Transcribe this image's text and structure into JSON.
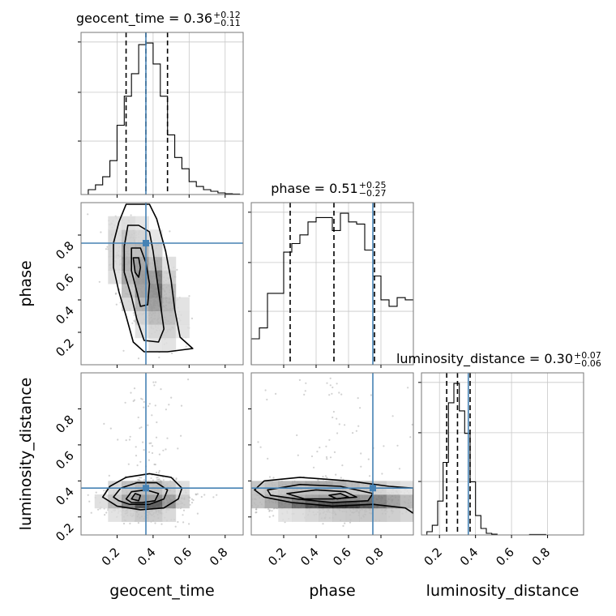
{
  "chart_data": {
    "type": "corner",
    "parameters": [
      "geocent_time",
      "phase",
      "luminosity_distance"
    ],
    "truths": {
      "geocent_time": 0.36,
      "phase": 0.75,
      "luminosity_distance": 0.36
    },
    "truth_color": "#4682b4",
    "titles": [
      {
        "param": "geocent_time",
        "label": "geocent_time = 0.36",
        "plus": "+0.12",
        "minus": "−0.11"
      },
      {
        "param": "phase",
        "label": "phase = 0.51",
        "plus": "+0.25",
        "minus": "−0.27"
      },
      {
        "param": "luminosity_distance",
        "label": "luminosity_distance = 0.30",
        "plus": "+0.07",
        "minus": "−0.06"
      }
    ],
    "quantiles": {
      "geocent_time": [
        0.25,
        0.36,
        0.48
      ],
      "phase": [
        0.24,
        0.51,
        0.76
      ],
      "luminosity_distance": [
        0.24,
        0.3,
        0.37
      ]
    },
    "axes": {
      "geocent_time": {
        "lim": [
          0.0,
          0.9
        ],
        "ticks": [
          0.2,
          0.4,
          0.6,
          0.8
        ],
        "tick_labels": [
          "0.2",
          "0.4",
          "0.6",
          "0.8"
        ]
      },
      "phase": {
        "lim": [
          0.0,
          1.0
        ],
        "ticks": [
          0.2,
          0.4,
          0.6,
          0.8
        ],
        "tick_labels": [
          "0.2",
          "0.4",
          "0.6",
          "0.8"
        ]
      },
      "luminosity_distance": {
        "lim": [
          0.1,
          1.0
        ],
        "ticks": [
          0.2,
          0.4,
          0.6,
          0.8
        ],
        "tick_labels": [
          "0.2",
          "0.4",
          "0.6",
          "0.8"
        ]
      }
    },
    "hist_1d": {
      "geocent_time": {
        "bins": [
          0.0,
          0.04,
          0.08,
          0.12,
          0.16,
          0.2,
          0.24,
          0.28,
          0.32,
          0.36,
          0.4,
          0.44,
          0.48,
          0.52,
          0.56,
          0.6,
          0.64,
          0.68,
          0.72,
          0.76,
          0.8,
          0.84,
          0.88,
          0.9
        ],
        "counts": [
          0,
          3,
          6,
          11,
          21,
          43,
          61,
          75,
          93,
          94,
          81,
          61,
          37,
          23,
          16,
          8,
          5,
          3,
          2,
          1,
          0.5,
          0.3,
          0
        ]
      },
      "phase": {
        "bins": [
          0.0,
          0.05,
          0.1,
          0.15,
          0.2,
          0.25,
          0.3,
          0.35,
          0.4,
          0.45,
          0.5,
          0.55,
          0.6,
          0.65,
          0.7,
          0.75,
          0.8,
          0.85,
          0.9,
          0.95,
          1.0
        ],
        "counts": [
          12,
          17,
          33,
          33,
          52,
          56,
          60,
          66,
          68,
          68,
          62,
          70,
          66,
          65,
          53,
          41,
          30,
          27,
          31,
          30
        ]
      },
      "luminosity_distance": {
        "bins": [
          0.1,
          0.13,
          0.16,
          0.19,
          0.22,
          0.25,
          0.28,
          0.31,
          0.34,
          0.37,
          0.4,
          0.43,
          0.46,
          0.49,
          0.52,
          0.55,
          0.7,
          0.73,
          0.76,
          0.79,
          1.0
        ],
        "counts": [
          0,
          2,
          6,
          21,
          45,
          82,
          94,
          77,
          63,
          33,
          12,
          4,
          1,
          0.5,
          0,
          0,
          0.3,
          0.3,
          0.3,
          0,
          0
        ]
      }
    },
    "contours_2d": [
      {
        "x": "geocent_time",
        "y": "phase",
        "levels": [
          [
            [
              0.25,
              0.99
            ],
            [
              0.21,
              0.88
            ],
            [
              0.18,
              0.75
            ],
            [
              0.18,
              0.6
            ],
            [
              0.21,
              0.45
            ],
            [
              0.25,
              0.3
            ],
            [
              0.29,
              0.14
            ],
            [
              0.35,
              0.08
            ],
            [
              0.48,
              0.08
            ],
            [
              0.62,
              0.1
            ],
            [
              0.55,
              0.17
            ],
            [
              0.52,
              0.34
            ],
            [
              0.5,
              0.52
            ],
            [
              0.47,
              0.7
            ],
            [
              0.42,
              0.9
            ],
            [
              0.38,
              0.99
            ]
          ],
          [
            [
              0.26,
              0.86
            ],
            [
              0.24,
              0.73
            ],
            [
              0.24,
              0.57
            ],
            [
              0.28,
              0.42
            ],
            [
              0.31,
              0.28
            ],
            [
              0.35,
              0.15
            ],
            [
              0.43,
              0.14
            ],
            [
              0.46,
              0.22
            ],
            [
              0.44,
              0.38
            ],
            [
              0.42,
              0.54
            ],
            [
              0.4,
              0.7
            ],
            [
              0.38,
              0.82
            ],
            [
              0.32,
              0.86
            ]
          ],
          [
            [
              0.28,
              0.72
            ],
            [
              0.28,
              0.58
            ],
            [
              0.31,
              0.45
            ],
            [
              0.33,
              0.36
            ],
            [
              0.37,
              0.37
            ],
            [
              0.38,
              0.5
            ],
            [
              0.36,
              0.63
            ],
            [
              0.33,
              0.72
            ]
          ],
          [
            [
              0.29,
              0.66
            ],
            [
              0.3,
              0.57
            ],
            [
              0.32,
              0.54
            ],
            [
              0.33,
              0.6
            ],
            [
              0.32,
              0.66
            ]
          ]
        ]
      },
      {
        "x": "geocent_time",
        "y": "luminosity_distance",
        "levels": [
          [
            [
              0.12,
              0.31
            ],
            [
              0.16,
              0.37
            ],
            [
              0.25,
              0.42
            ],
            [
              0.38,
              0.44
            ],
            [
              0.5,
              0.42
            ],
            [
              0.56,
              0.36
            ],
            [
              0.54,
              0.3
            ],
            [
              0.46,
              0.25
            ],
            [
              0.33,
              0.24
            ],
            [
              0.2,
              0.26
            ]
          ],
          [
            [
              0.18,
              0.31
            ],
            [
              0.22,
              0.36
            ],
            [
              0.31,
              0.39
            ],
            [
              0.42,
              0.39
            ],
            [
              0.48,
              0.35
            ],
            [
              0.46,
              0.3
            ],
            [
              0.38,
              0.27
            ],
            [
              0.27,
              0.27
            ],
            [
              0.21,
              0.29
            ]
          ],
          [
            [
              0.25,
              0.3
            ],
            [
              0.28,
              0.34
            ],
            [
              0.36,
              0.35
            ],
            [
              0.43,
              0.33
            ],
            [
              0.41,
              0.29
            ],
            [
              0.34,
              0.28
            ],
            [
              0.28,
              0.28
            ]
          ],
          [
            [
              0.28,
              0.3
            ],
            [
              0.3,
              0.33
            ],
            [
              0.33,
              0.32
            ],
            [
              0.32,
              0.29
            ]
          ]
        ]
      },
      {
        "x": "phase",
        "y": "luminosity_distance",
        "levels": [
          [
            [
              0.02,
              0.35
            ],
            [
              0.08,
              0.4
            ],
            [
              0.3,
              0.42
            ],
            [
              0.6,
              0.4
            ],
            [
              0.85,
              0.37
            ],
            [
              1.0,
              0.36
            ],
            [
              1.0,
              0.22
            ],
            [
              0.95,
              0.25
            ],
            [
              0.75,
              0.27
            ],
            [
              0.5,
              0.26
            ],
            [
              0.25,
              0.28
            ],
            [
              0.08,
              0.31
            ]
          ],
          [
            [
              0.1,
              0.35
            ],
            [
              0.3,
              0.38
            ],
            [
              0.55,
              0.37
            ],
            [
              0.75,
              0.33
            ],
            [
              0.72,
              0.29
            ],
            [
              0.5,
              0.28
            ],
            [
              0.28,
              0.3
            ],
            [
              0.12,
              0.32
            ]
          ],
          [
            [
              0.22,
              0.33
            ],
            [
              0.4,
              0.35
            ],
            [
              0.58,
              0.34
            ],
            [
              0.65,
              0.31
            ],
            [
              0.5,
              0.3
            ],
            [
              0.33,
              0.3
            ]
          ],
          [
            [
              0.48,
              0.32
            ],
            [
              0.55,
              0.33
            ],
            [
              0.6,
              0.31
            ],
            [
              0.53,
              0.3
            ]
          ]
        ]
      }
    ]
  }
}
